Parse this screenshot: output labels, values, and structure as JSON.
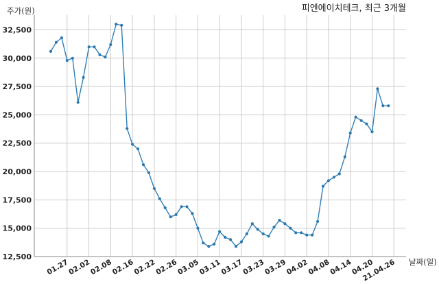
{
  "chart_data": {
    "type": "line",
    "title": "피엔에이치테크, 최근 3개월",
    "ylabel": "주가(원)",
    "xlabel": "날짜(일)",
    "ylim": [
      12500,
      33800
    ],
    "yticks": [
      12500,
      15000,
      17500,
      20000,
      22500,
      25000,
      27500,
      30000,
      32500
    ],
    "ytick_labels": [
      "12,500",
      "15,000",
      "17,500",
      "20,000",
      "22,500",
      "25,000",
      "27,500",
      "30,000",
      "32,500"
    ],
    "xtick_labels": [
      "01.27",
      "02.02",
      "02.08",
      "02.16",
      "02.22",
      "02.26",
      "03.05",
      "03.11",
      "03.17",
      "03.23",
      "03.29",
      "04.02",
      "04.08",
      "04.14",
      "04.20",
      "21.04.26"
    ],
    "xtick_indices": [
      3,
      7,
      11,
      15,
      19,
      23,
      27,
      31,
      35,
      39,
      43,
      47,
      51,
      55,
      59,
      63
    ],
    "grid": true,
    "series": [
      {
        "color": "#2f7fb5",
        "values": [
          30600,
          31400,
          31800,
          29800,
          30000,
          26100,
          28300,
          31000,
          31000,
          30300,
          30100,
          31200,
          33000,
          32900,
          23800,
          22400,
          22000,
          20600,
          19900,
          18500,
          17600,
          16800,
          16000,
          16200,
          16900,
          16900,
          16300,
          15000,
          13700,
          13400,
          13600,
          14700,
          14200,
          14000,
          13400,
          13800,
          14500,
          15400,
          14900,
          14500,
          14300,
          15100,
          15700,
          15400,
          15000,
          14600,
          14600,
          14400,
          14400,
          15600,
          18700,
          19200,
          19500,
          19800,
          21300,
          23400,
          24800,
          24500,
          24200,
          23500,
          27300,
          25800,
          25800
        ]
      }
    ]
  }
}
